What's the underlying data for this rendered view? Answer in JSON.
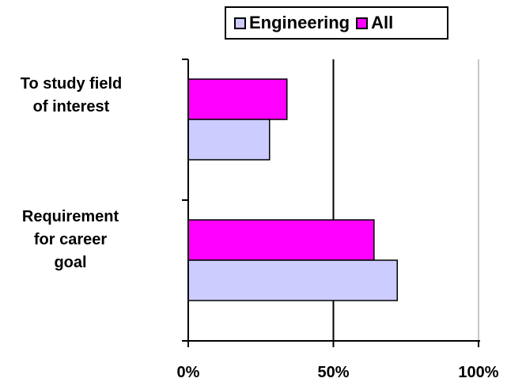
{
  "chart_data": {
    "type": "bar",
    "orientation": "horizontal",
    "title": "",
    "xlabel": "",
    "ylabel": "",
    "categories": [
      "To study field\nof interest",
      "Requirement\nfor career\ngoal"
    ],
    "series": [
      {
        "name": "All",
        "color": "#ff00ff",
        "values": [
          34,
          64
        ]
      },
      {
        "name": "Engineering",
        "color": "#ccccff",
        "values": [
          28,
          72
        ]
      }
    ],
    "legend": {
      "placement": "top",
      "items": [
        {
          "label": "Engineering",
          "color": "#ccccff"
        },
        {
          "label": "All",
          "color": "#ff00ff"
        }
      ]
    },
    "xlim": [
      0,
      100
    ],
    "xticks": [
      0,
      50,
      100
    ],
    "xtick_labels": [
      "0%",
      "50%",
      "100%"
    ],
    "grid": "vertical"
  }
}
